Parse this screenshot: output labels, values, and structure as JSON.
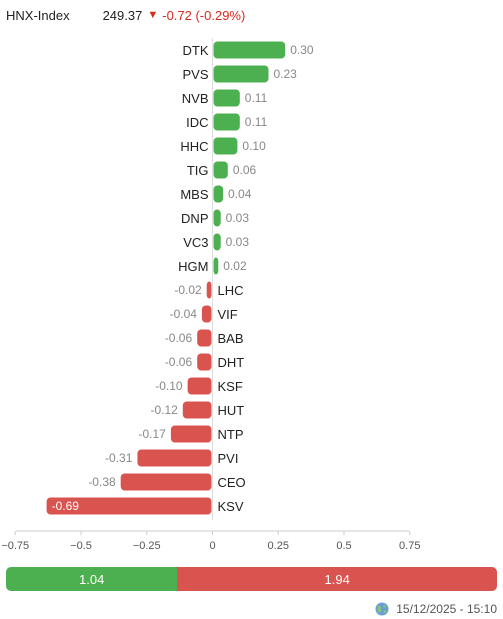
{
  "header": {
    "index_name": "HNX-Index",
    "index_value": "249.37",
    "arrow": "▼",
    "change": "-0.72 (-0.29%)"
  },
  "colors": {
    "positive": "#4caf50",
    "negative": "#d9534f",
    "change_text": "#d9281c"
  },
  "chart_data": {
    "type": "bar",
    "orientation": "horizontal",
    "categories": [
      "DTK",
      "PVS",
      "NVB",
      "IDC",
      "HHC",
      "TIG",
      "MBS",
      "DNP",
      "VC3",
      "HGM",
      "LHC",
      "VIF",
      "BAB",
      "DHT",
      "KSF",
      "HUT",
      "NTP",
      "PVI",
      "CEO",
      "KSV"
    ],
    "values": [
      0.3,
      0.23,
      0.11,
      0.11,
      0.1,
      0.06,
      0.04,
      0.03,
      0.03,
      0.02,
      -0.02,
      -0.04,
      -0.06,
      -0.06,
      -0.1,
      -0.12,
      -0.17,
      -0.31,
      -0.38,
      -0.69
    ],
    "value_labels": [
      "0.30",
      "0.23",
      "0.11",
      "0.11",
      "0.10",
      "0.06",
      "0.04",
      "0.03",
      "0.03",
      "0.02",
      "-0.02",
      "-0.04",
      "-0.06",
      "-0.06",
      "-0.10",
      "-0.12",
      "-0.17",
      "-0.31",
      "-0.38",
      "-0.69"
    ],
    "xlim": [
      -0.8,
      0.8
    ],
    "xticks": [
      -0.75,
      -0.5,
      -0.25,
      0,
      0.25,
      0.5,
      0.75
    ],
    "xtick_labels": [
      "−0.75",
      "−0.5",
      "−0.25",
      "0",
      "0.25",
      "0.5",
      "0.75"
    ],
    "grid": false,
    "title": "",
    "xlabel": "",
    "ylabel": ""
  },
  "breadth": {
    "up_label": "1.04",
    "down_label": "1.94",
    "up_value": 1.04,
    "down_value": 1.94
  },
  "footer": {
    "icon": "globe-icon",
    "timestamp": "15/12/2025 - 15:10"
  }
}
